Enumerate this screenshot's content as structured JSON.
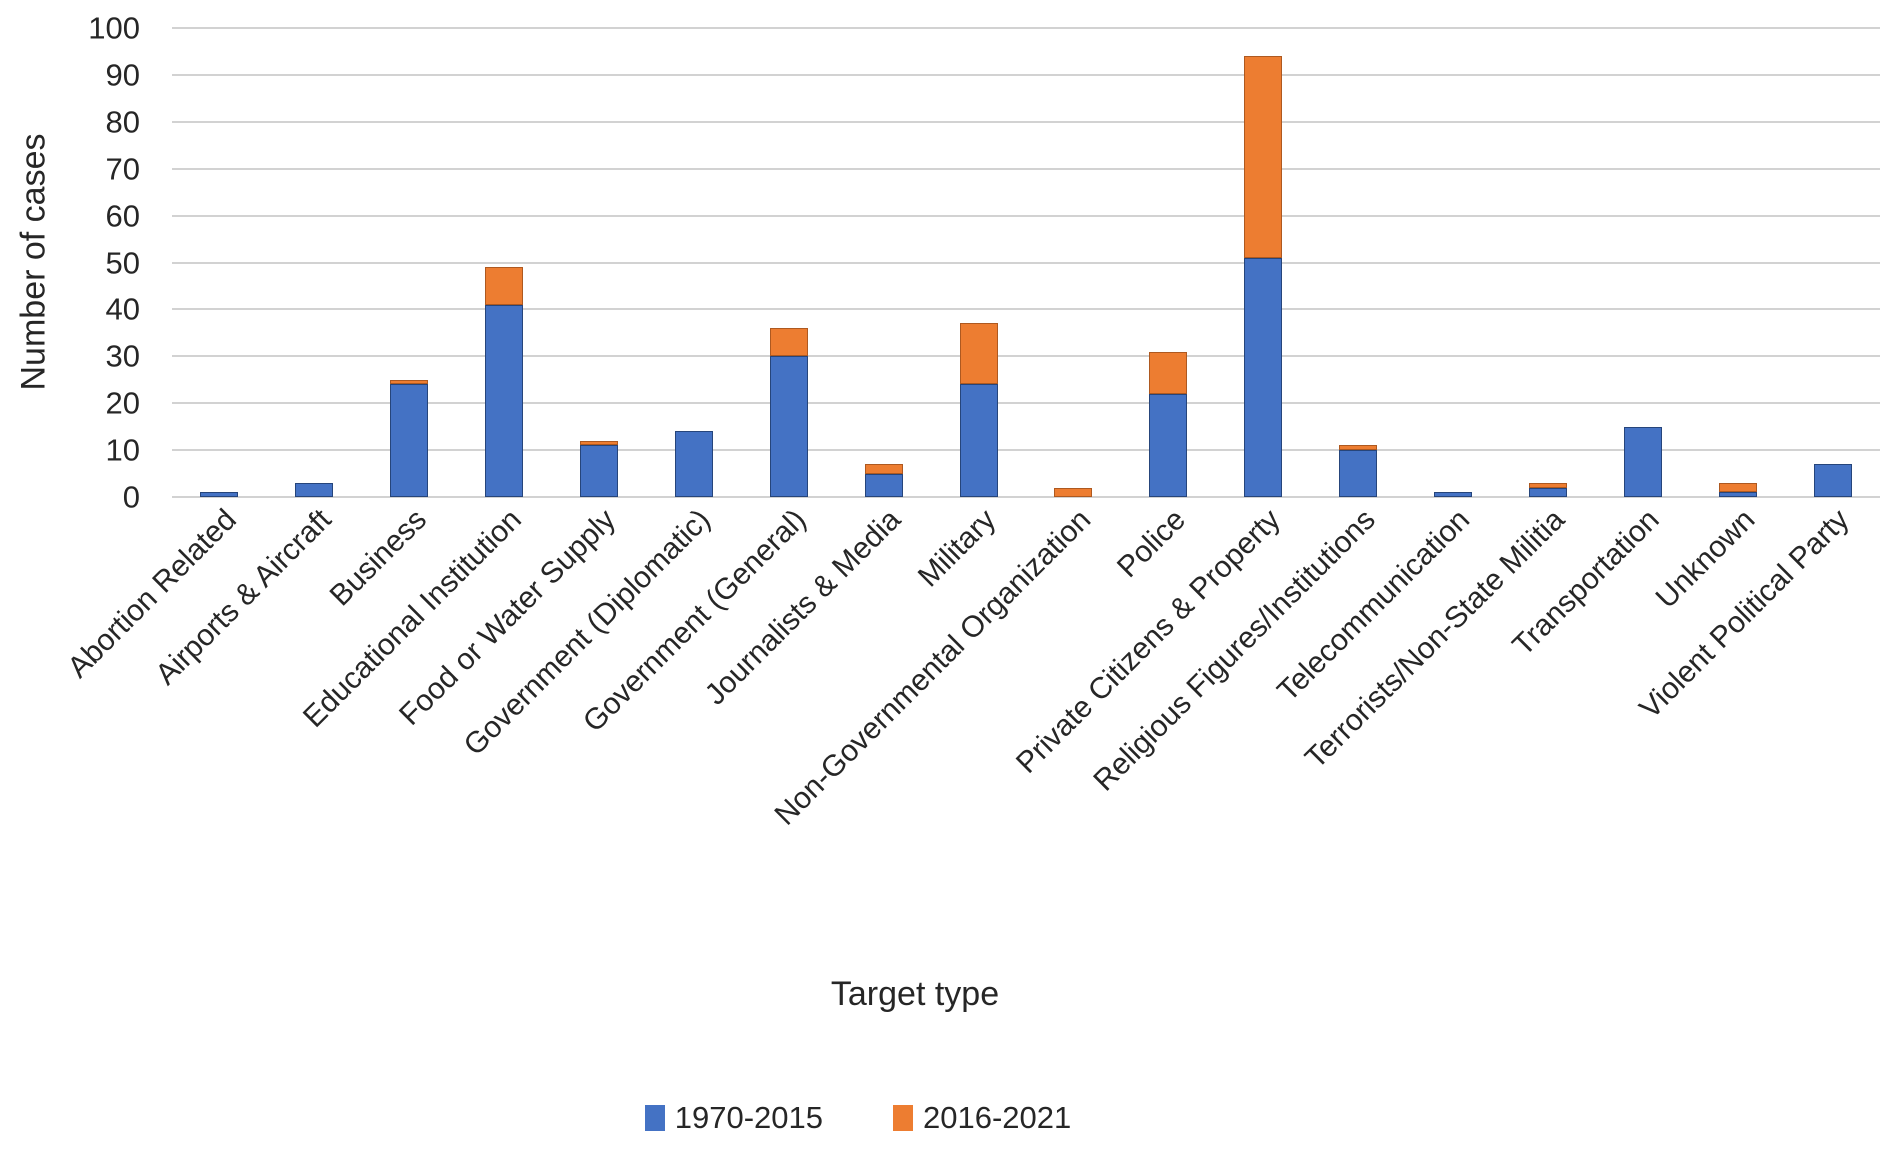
{
  "chart_data": {
    "type": "bar",
    "stacked": true,
    "title": "",
    "xlabel": "Target type",
    "ylabel": "Number of cases",
    "ylim": [
      0,
      100
    ],
    "ytick_step": 10,
    "ytick_labels": [
      0,
      10,
      20,
      30,
      40,
      50,
      60,
      70,
      80,
      90,
      100
    ],
    "grid": true,
    "legend_position": "bottom",
    "categories": [
      "Abortion Related",
      "Airports & Aircraft",
      "Business",
      "Educational Institution",
      "Food or Water Supply",
      "Government (Diplomatic)",
      "Government (General)",
      "Journalists & Media",
      "Military",
      "Non-Governmental Organization",
      "Police",
      "Private Citizens & Property",
      "Religious Figures/Institutions",
      "Telecommunication",
      "Terrorists/Non-State Militia",
      "Transportation",
      "Unknown",
      "Violent Political Party"
    ],
    "series": [
      {
        "name": "1970-2015",
        "color": "#4472C4",
        "values": [
          1,
          3,
          24,
          41,
          11,
          14,
          30,
          5,
          24,
          0,
          22,
          51,
          10,
          1,
          2,
          15,
          1,
          7
        ]
      },
      {
        "name": "2016-2021",
        "color": "#ED7D31",
        "values": [
          0,
          0,
          1,
          8,
          1,
          0,
          6,
          2,
          13,
          2,
          9,
          43,
          1,
          0,
          1,
          0,
          2,
          0
        ]
      }
    ]
  },
  "colors": {
    "gridline": "#d2d2d2",
    "text": "#262626",
    "background": "#ffffff"
  }
}
